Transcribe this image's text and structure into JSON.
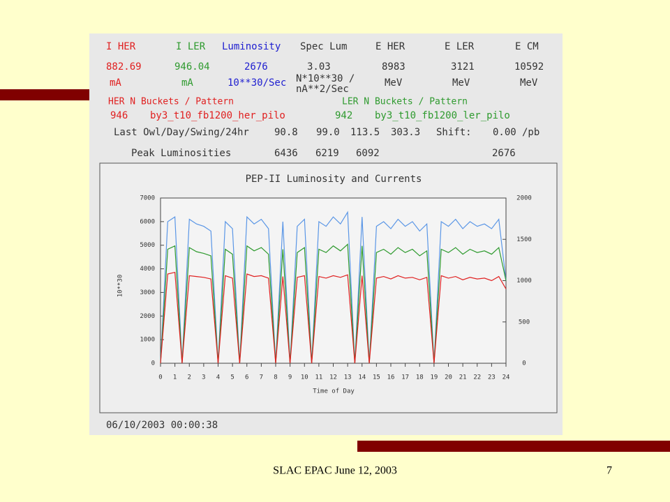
{
  "panel": {
    "labels": [
      "I HER",
      "I LER",
      "Luminosity",
      "Spec Lum",
      "E HER",
      "E LER",
      "E CM"
    ],
    "readings": [
      "882.69",
      "946.04",
      "2676",
      "3.03",
      "8983",
      "3121",
      "10592"
    ],
    "units": [
      "mA",
      "mA",
      "10**30/Sec",
      "N*10**30 /",
      "nA**2/Sec",
      "MeV",
      "MeV",
      "MeV"
    ],
    "her_pattern_label": "HER N Buckets / Pattern",
    "ler_pattern_label": "LER N Buckets / Pattern",
    "her_buckets": "946",
    "her_pattern": "by3_t10_fb1200_her_pilo",
    "ler_buckets": "942",
    "ler_pattern": "by3_t10_fb1200_ler_pilo",
    "shift_label": "Last Owl/Day/Swing/24hr",
    "shift_values": [
      "90.8",
      "99.0",
      "113.5",
      "303.3"
    ],
    "shift": "Shift:",
    "shift_value": "0.00",
    "shift_unit": "/pb",
    "peak_label": "Peak Luminosities",
    "peak_values": [
      "6436",
      "6219",
      "6092",
      "2676"
    ],
    "timestamp": "06/10/2003 00:00:38"
  },
  "chart_data": {
    "type": "line",
    "title": "PEP-II Luminosity and Currents",
    "x_label": "Time of Day",
    "y_label": "10**30",
    "x": [
      0,
      0.5,
      1,
      1.5,
      2,
      2.5,
      3,
      3.5,
      4,
      4.5,
      5,
      5.5,
      6,
      6.5,
      7,
      7.5,
      8,
      8.5,
      9,
      9.5,
      10,
      10.5,
      11,
      11.5,
      12,
      12.5,
      13,
      13.5,
      14,
      14.5,
      15,
      15.5,
      16,
      16.5,
      17,
      17.5,
      18,
      18.5,
      19,
      19.5,
      20,
      20.5,
      21,
      21.5,
      22,
      22.5,
      23,
      23.5,
      24
    ],
    "xlim": [
      0,
      24
    ],
    "xticks": [
      0,
      1,
      2,
      3,
      4,
      5,
      6,
      7,
      8,
      9,
      10,
      11,
      12,
      13,
      14,
      15,
      16,
      17,
      18,
      19,
      20,
      21,
      22,
      23,
      24
    ],
    "ylim": [
      0,
      7000
    ],
    "yticks": [
      0,
      1000,
      2000,
      3000,
      4000,
      5000,
      6000,
      7000
    ],
    "y2lim": [
      0,
      2000
    ],
    "y2ticks": [
      0,
      500,
      1000,
      1500,
      2000
    ],
    "series": [
      {
        "color": "#5a96e6",
        "values": [
          0,
          6000,
          6200,
          0,
          6100,
          5900,
          5800,
          5600,
          0,
          6000,
          5700,
          0,
          6200,
          5900,
          6100,
          5700,
          0,
          6000,
          0,
          5800,
          6100,
          0,
          6000,
          5800,
          6200,
          5900,
          6400,
          0,
          6200,
          0,
          5800,
          6000,
          5700,
          6100,
          5800,
          6000,
          5600,
          5900,
          0,
          6000,
          5800,
          6100,
          5700,
          6000,
          5800,
          5900,
          5700,
          6100,
          3500
        ]
      },
      {
        "color": "#2e9a2e",
        "axis": "y2",
        "values": [
          0,
          1380,
          1420,
          0,
          1400,
          1350,
          1330,
          1300,
          0,
          1380,
          1320,
          0,
          1420,
          1360,
          1400,
          1320,
          0,
          1380,
          0,
          1340,
          1400,
          0,
          1380,
          1340,
          1420,
          1360,
          1440,
          0,
          1420,
          0,
          1340,
          1380,
          1320,
          1400,
          1340,
          1380,
          1300,
          1360,
          0,
          1380,
          1340,
          1400,
          1320,
          1380,
          1340,
          1360,
          1320,
          1400,
          1000
        ]
      },
      {
        "color": "#e02020",
        "axis": "y2",
        "values": [
          0,
          1080,
          1100,
          0,
          1060,
          1050,
          1040,
          1020,
          0,
          1060,
          1030,
          0,
          1080,
          1050,
          1060,
          1030,
          0,
          1050,
          0,
          1040,
          1060,
          0,
          1050,
          1030,
          1060,
          1040,
          1070,
          0,
          1060,
          0,
          1030,
          1050,
          1020,
          1060,
          1030,
          1040,
          1010,
          1040,
          0,
          1060,
          1030,
          1050,
          1010,
          1040,
          1020,
          1030,
          1000,
          1050,
          900
        ]
      }
    ]
  }
}
